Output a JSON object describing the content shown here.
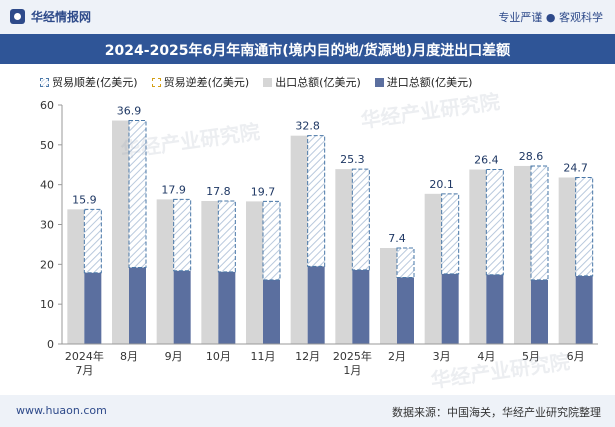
{
  "header": {
    "brand": "华经情报网",
    "slogan": "专业严谨 ● 客观科学"
  },
  "watermark": "华经产业研究院",
  "footer": {
    "site": "www.huaon.com",
    "source": "数据来源：中国海关，华经产业研究院整理"
  },
  "legend": {
    "surplus": "贸易顺差(亿美元)",
    "deficit": "贸易逆差(亿美元)",
    "export": "出口总额(亿美元)",
    "import": "进口总额(亿美元)"
  },
  "colors": {
    "export": "#d6d6d6",
    "import": "#5b6f9f",
    "surplus_border": "#4a78a8",
    "deficit_border": "#d4a017",
    "title_bg": "#2f5597"
  },
  "chart_data": {
    "type": "bar",
    "title": "2024-2025年6月年南通市(境内目的地/货源地)月度进出口差额",
    "categories": [
      "2024年\n7月",
      "8月",
      "9月",
      "10月",
      "11月",
      "12月",
      "2025年\n1月",
      "2月",
      "3月",
      "4月",
      "5月",
      "6月"
    ],
    "series": [
      {
        "name": "出口总额(亿美元)",
        "values": [
          33.8,
          56.1,
          36.3,
          35.9,
          35.8,
          52.3,
          43.9,
          24.1,
          37.7,
          43.8,
          44.7,
          41.8
        ]
      },
      {
        "name": "进口总额(亿美元)",
        "values": [
          17.9,
          19.2,
          18.4,
          18.1,
          16.1,
          19.5,
          18.6,
          16.7,
          17.6,
          17.4,
          16.1,
          17.1
        ]
      },
      {
        "name": "贸易顺差(亿美元)",
        "values": [
          15.9,
          36.9,
          17.9,
          17.8,
          19.7,
          32.8,
          25.3,
          7.4,
          20.1,
          26.4,
          28.6,
          24.7
        ]
      },
      {
        "name": "贸易逆差(亿美元)",
        "values": [
          0,
          0,
          0,
          0,
          0,
          0,
          0,
          0,
          0,
          0,
          0,
          0
        ]
      }
    ],
    "ylim": [
      0,
      60
    ],
    "yticks": [
      0,
      10,
      20,
      30,
      40,
      50,
      60
    ],
    "grid": false,
    "legend_position": "top"
  }
}
